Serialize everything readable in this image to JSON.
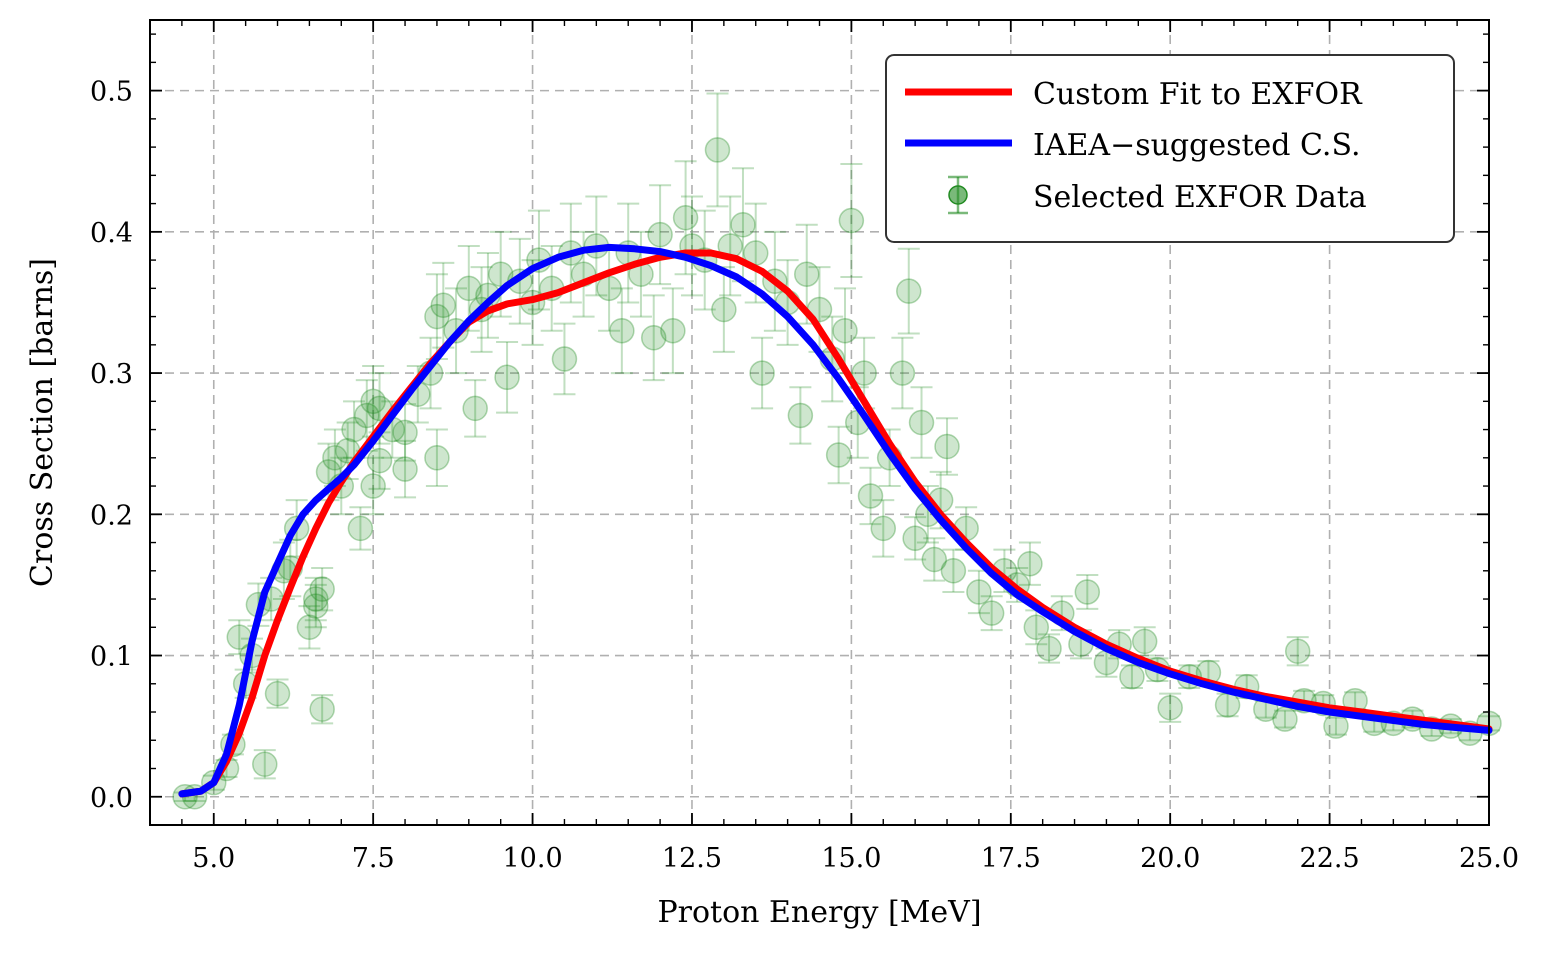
{
  "chart_data": {
    "type": "line",
    "title": "",
    "xlabel": "Proton Energy [MeV]",
    "ylabel": "Cross Section [barns]",
    "xlim": [
      4.0,
      25.0
    ],
    "ylim": [
      -0.02,
      0.55
    ],
    "xticks": [
      5.0,
      7.5,
      10.0,
      12.5,
      15.0,
      17.5,
      20.0,
      22.5,
      25.0
    ],
    "xtick_labels": [
      "5.0",
      "7.5",
      "10.0",
      "12.5",
      "15.0",
      "17.5",
      "20.0",
      "22.5",
      "25.0"
    ],
    "yticks": [
      0.0,
      0.1,
      0.2,
      0.3,
      0.4,
      0.5
    ],
    "ytick_labels": [
      "0.0",
      "0.1",
      "0.2",
      "0.3",
      "0.4",
      "0.5"
    ],
    "grid": true,
    "legend_position": "top-right",
    "series": [
      {
        "name": "Custom Fit to EXFOR",
        "type": "line",
        "color": "#ff0000",
        "points": [
          [
            4.5,
            0.002
          ],
          [
            4.8,
            0.004
          ],
          [
            5.0,
            0.01
          ],
          [
            5.2,
            0.025
          ],
          [
            5.4,
            0.045
          ],
          [
            5.6,
            0.07
          ],
          [
            5.8,
            0.1
          ],
          [
            6.0,
            0.125
          ],
          [
            6.2,
            0.148
          ],
          [
            6.4,
            0.17
          ],
          [
            6.6,
            0.19
          ],
          [
            6.8,
            0.208
          ],
          [
            7.0,
            0.223
          ],
          [
            7.2,
            0.237
          ],
          [
            7.5,
            0.255
          ],
          [
            7.8,
            0.273
          ],
          [
            8.1,
            0.29
          ],
          [
            8.4,
            0.307
          ],
          [
            8.7,
            0.322
          ],
          [
            9.0,
            0.336
          ],
          [
            9.3,
            0.344
          ],
          [
            9.6,
            0.349
          ],
          [
            10.0,
            0.352
          ],
          [
            10.4,
            0.357
          ],
          [
            10.8,
            0.364
          ],
          [
            11.2,
            0.371
          ],
          [
            11.6,
            0.377
          ],
          [
            12.0,
            0.382
          ],
          [
            12.4,
            0.385
          ],
          [
            12.8,
            0.385
          ],
          [
            13.2,
            0.381
          ],
          [
            13.6,
            0.372
          ],
          [
            14.0,
            0.358
          ],
          [
            14.4,
            0.338
          ],
          [
            14.8,
            0.31
          ],
          [
            15.2,
            0.28
          ],
          [
            15.6,
            0.25
          ],
          [
            16.0,
            0.223
          ],
          [
            16.4,
            0.2
          ],
          [
            16.8,
            0.18
          ],
          [
            17.2,
            0.162
          ],
          [
            17.6,
            0.147
          ],
          [
            18.0,
            0.134
          ],
          [
            18.5,
            0.12
          ],
          [
            19.0,
            0.108
          ],
          [
            19.5,
            0.098
          ],
          [
            20.0,
            0.089
          ],
          [
            20.5,
            0.082
          ],
          [
            21.0,
            0.076
          ],
          [
            21.5,
            0.071
          ],
          [
            22.0,
            0.067
          ],
          [
            22.5,
            0.063
          ],
          [
            23.0,
            0.06
          ],
          [
            23.5,
            0.057
          ],
          [
            24.0,
            0.054
          ],
          [
            24.5,
            0.051
          ],
          [
            25.0,
            0.048
          ]
        ]
      },
      {
        "name": "IAEA−suggested C.S.",
        "type": "line",
        "color": "#0000ff",
        "points": [
          [
            4.5,
            0.002
          ],
          [
            4.8,
            0.004
          ],
          [
            5.0,
            0.01
          ],
          [
            5.2,
            0.03
          ],
          [
            5.4,
            0.065
          ],
          [
            5.6,
            0.11
          ],
          [
            5.8,
            0.145
          ],
          [
            6.0,
            0.165
          ],
          [
            6.2,
            0.185
          ],
          [
            6.4,
            0.2
          ],
          [
            6.6,
            0.21
          ],
          [
            6.8,
            0.218
          ],
          [
            7.0,
            0.226
          ],
          [
            7.2,
            0.235
          ],
          [
            7.5,
            0.252
          ],
          [
            7.8,
            0.27
          ],
          [
            8.1,
            0.288
          ],
          [
            8.4,
            0.305
          ],
          [
            8.7,
            0.322
          ],
          [
            9.0,
            0.337
          ],
          [
            9.3,
            0.35
          ],
          [
            9.6,
            0.362
          ],
          [
            10.0,
            0.374
          ],
          [
            10.4,
            0.382
          ],
          [
            10.8,
            0.387
          ],
          [
            11.2,
            0.389
          ],
          [
            11.6,
            0.388
          ],
          [
            12.0,
            0.386
          ],
          [
            12.4,
            0.382
          ],
          [
            12.8,
            0.376
          ],
          [
            13.2,
            0.368
          ],
          [
            13.6,
            0.356
          ],
          [
            14.0,
            0.34
          ],
          [
            14.4,
            0.32
          ],
          [
            14.8,
            0.296
          ],
          [
            15.2,
            0.27
          ],
          [
            15.6,
            0.243
          ],
          [
            16.0,
            0.218
          ],
          [
            16.4,
            0.196
          ],
          [
            16.8,
            0.176
          ],
          [
            17.2,
            0.158
          ],
          [
            17.6,
            0.143
          ],
          [
            18.0,
            0.131
          ],
          [
            18.5,
            0.117
          ],
          [
            19.0,
            0.105
          ],
          [
            19.5,
            0.095
          ],
          [
            20.0,
            0.087
          ],
          [
            20.5,
            0.08
          ],
          [
            21.0,
            0.074
          ],
          [
            21.5,
            0.069
          ],
          [
            22.0,
            0.064
          ],
          [
            22.5,
            0.06
          ],
          [
            23.0,
            0.057
          ],
          [
            23.5,
            0.054
          ],
          [
            24.0,
            0.051
          ],
          [
            24.5,
            0.049
          ],
          [
            25.0,
            0.047
          ]
        ]
      },
      {
        "name": "Selected EXFOR Data",
        "type": "scatter",
        "color": "#228b22",
        "points": [
          [
            4.55,
            0.0,
            0.003
          ],
          [
            4.7,
            0.0,
            0.003
          ],
          [
            5.0,
            0.01,
            0.005
          ],
          [
            5.2,
            0.02,
            0.006
          ],
          [
            5.3,
            0.037,
            0.007
          ],
          [
            5.4,
            0.113,
            0.012
          ],
          [
            5.5,
            0.08,
            0.01
          ],
          [
            5.6,
            0.1,
            0.012
          ],
          [
            5.7,
            0.136,
            0.015
          ],
          [
            5.8,
            0.023,
            0.01
          ],
          [
            5.9,
            0.14,
            0.015
          ],
          [
            6.0,
            0.073,
            0.01
          ],
          [
            6.1,
            0.16,
            0.02
          ],
          [
            6.2,
            0.162,
            0.02
          ],
          [
            6.3,
            0.19,
            0.02
          ],
          [
            6.5,
            0.12,
            0.015
          ],
          [
            6.6,
            0.135,
            0.015
          ],
          [
            6.6,
            0.14,
            0.015
          ],
          [
            6.7,
            0.062,
            0.01
          ],
          [
            6.7,
            0.147,
            0.015
          ],
          [
            6.8,
            0.23,
            0.02
          ],
          [
            6.9,
            0.24,
            0.02
          ],
          [
            7.0,
            0.22,
            0.02
          ],
          [
            7.1,
            0.245,
            0.02
          ],
          [
            7.2,
            0.26,
            0.02
          ],
          [
            7.3,
            0.19,
            0.015
          ],
          [
            7.4,
            0.27,
            0.025
          ],
          [
            7.5,
            0.28,
            0.025
          ],
          [
            7.6,
            0.275,
            0.025
          ],
          [
            7.5,
            0.22,
            0.02
          ],
          [
            7.6,
            0.238,
            0.02
          ],
          [
            7.8,
            0.26,
            0.02
          ],
          [
            8.0,
            0.232,
            0.02
          ],
          [
            8.0,
            0.258,
            0.02
          ],
          [
            8.2,
            0.285,
            0.02
          ],
          [
            8.4,
            0.3,
            0.025
          ],
          [
            8.5,
            0.24,
            0.02
          ],
          [
            8.5,
            0.34,
            0.03
          ],
          [
            8.6,
            0.348,
            0.03
          ],
          [
            8.8,
            0.33,
            0.03
          ],
          [
            9.0,
            0.36,
            0.03
          ],
          [
            9.1,
            0.275,
            0.02
          ],
          [
            9.2,
            0.345,
            0.03
          ],
          [
            9.3,
            0.355,
            0.03
          ],
          [
            9.5,
            0.37,
            0.03
          ],
          [
            9.6,
            0.297,
            0.025
          ],
          [
            9.8,
            0.365,
            0.03
          ],
          [
            10.0,
            0.35,
            0.03
          ],
          [
            10.1,
            0.38,
            0.035
          ],
          [
            10.3,
            0.36,
            0.03
          ],
          [
            10.5,
            0.31,
            0.025
          ],
          [
            10.6,
            0.385,
            0.035
          ],
          [
            10.8,
            0.37,
            0.03
          ],
          [
            11.0,
            0.39,
            0.035
          ],
          [
            11.2,
            0.36,
            0.03
          ],
          [
            11.4,
            0.33,
            0.03
          ],
          [
            11.5,
            0.385,
            0.035
          ],
          [
            11.7,
            0.37,
            0.03
          ],
          [
            11.9,
            0.325,
            0.03
          ],
          [
            12.0,
            0.398,
            0.035
          ],
          [
            12.2,
            0.33,
            0.03
          ],
          [
            12.4,
            0.41,
            0.04
          ],
          [
            12.5,
            0.39,
            0.035
          ],
          [
            12.7,
            0.38,
            0.035
          ],
          [
            12.9,
            0.458,
            0.04
          ],
          [
            13.0,
            0.345,
            0.03
          ],
          [
            13.1,
            0.39,
            0.035
          ],
          [
            13.3,
            0.405,
            0.04
          ],
          [
            13.5,
            0.385,
            0.035
          ],
          [
            13.6,
            0.3,
            0.025
          ],
          [
            13.8,
            0.365,
            0.035
          ],
          [
            14.0,
            0.35,
            0.03
          ],
          [
            14.2,
            0.27,
            0.02
          ],
          [
            14.3,
            0.37,
            0.035
          ],
          [
            14.5,
            0.345,
            0.03
          ],
          [
            14.7,
            0.31,
            0.03
          ],
          [
            14.8,
            0.242,
            0.02
          ],
          [
            14.9,
            0.33,
            0.03
          ],
          [
            15.0,
            0.408,
            0.04
          ],
          [
            15.1,
            0.265,
            0.025
          ],
          [
            15.2,
            0.3,
            0.025
          ],
          [
            15.3,
            0.213,
            0.02
          ],
          [
            15.5,
            0.19,
            0.02
          ],
          [
            15.6,
            0.24,
            0.02
          ],
          [
            15.8,
            0.3,
            0.025
          ],
          [
            15.9,
            0.358,
            0.03
          ],
          [
            16.0,
            0.183,
            0.015
          ],
          [
            16.1,
            0.265,
            0.025
          ],
          [
            16.2,
            0.2,
            0.02
          ],
          [
            16.3,
            0.168,
            0.015
          ],
          [
            16.4,
            0.21,
            0.02
          ],
          [
            16.5,
            0.248,
            0.02
          ],
          [
            16.6,
            0.16,
            0.015
          ],
          [
            16.8,
            0.19,
            0.015
          ],
          [
            17.0,
            0.145,
            0.015
          ],
          [
            17.2,
            0.13,
            0.012
          ],
          [
            17.4,
            0.16,
            0.015
          ],
          [
            17.6,
            0.15,
            0.012
          ],
          [
            17.8,
            0.165,
            0.015
          ],
          [
            17.9,
            0.12,
            0.012
          ],
          [
            18.1,
            0.105,
            0.01
          ],
          [
            18.3,
            0.13,
            0.012
          ],
          [
            18.6,
            0.108,
            0.01
          ],
          [
            18.7,
            0.145,
            0.012
          ],
          [
            19.0,
            0.095,
            0.01
          ],
          [
            19.2,
            0.108,
            0.01
          ],
          [
            19.4,
            0.085,
            0.008
          ],
          [
            19.6,
            0.11,
            0.01
          ],
          [
            19.8,
            0.09,
            0.008
          ],
          [
            20.0,
            0.063,
            0.01
          ],
          [
            20.3,
            0.085,
            0.008
          ],
          [
            20.6,
            0.088,
            0.008
          ],
          [
            20.9,
            0.065,
            0.008
          ],
          [
            21.2,
            0.078,
            0.008
          ],
          [
            21.5,
            0.062,
            0.006
          ],
          [
            21.8,
            0.055,
            0.006
          ],
          [
            22.0,
            0.103,
            0.01
          ],
          [
            22.1,
            0.068,
            0.007
          ],
          [
            22.4,
            0.066,
            0.006
          ],
          [
            22.6,
            0.05,
            0.006
          ],
          [
            22.9,
            0.068,
            0.006
          ],
          [
            23.2,
            0.052,
            0.006
          ],
          [
            23.5,
            0.052,
            0.005
          ],
          [
            23.8,
            0.055,
            0.006
          ],
          [
            24.1,
            0.048,
            0.005
          ],
          [
            24.4,
            0.05,
            0.005
          ],
          [
            24.7,
            0.045,
            0.005
          ],
          [
            25.0,
            0.052,
            0.005
          ]
        ]
      }
    ]
  }
}
